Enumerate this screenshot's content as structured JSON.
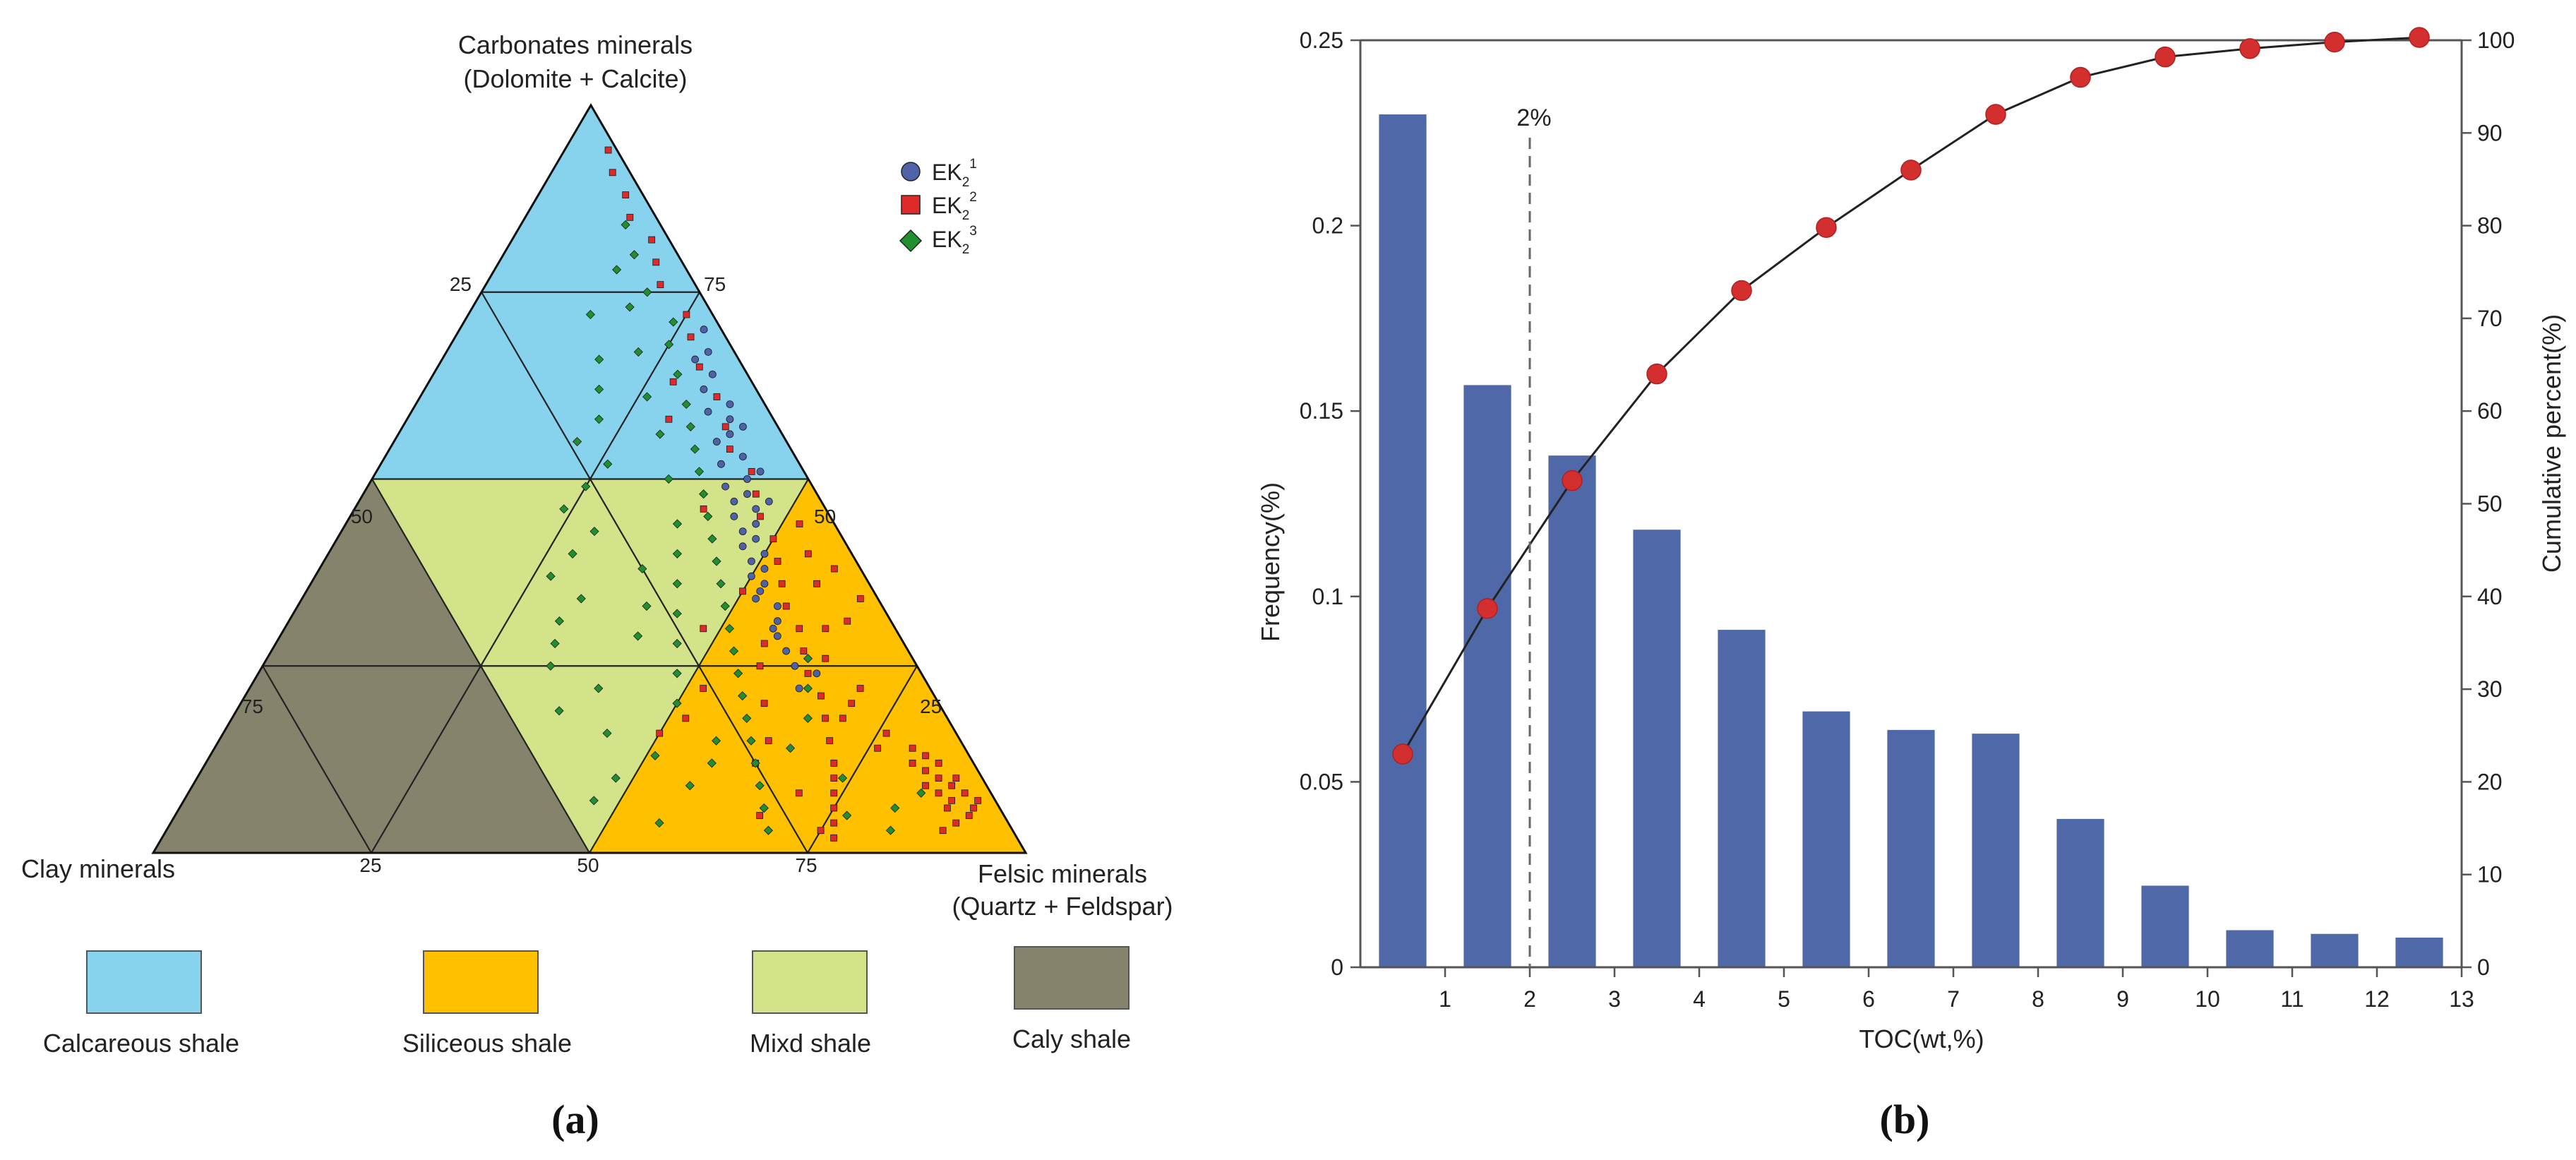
{
  "panel_a": {
    "label": "(a)",
    "top_vertex_line1": "Carbonates minerals",
    "top_vertex_line2": "(Dolomite + Calcite)",
    "left_vertex": "Clay minerals",
    "right_vertex_line1": "Felsic minerals",
    "right_vertex_line2": "(Quartz + Feldspar)",
    "ticks": {
      "left_edge": [
        "25",
        "50",
        "75"
      ],
      "right_edge": [
        "75",
        "50",
        "25"
      ],
      "bottom_edge": [
        "25",
        "50",
        "75"
      ]
    },
    "legend": [
      {
        "name": "EK",
        "sub": "2",
        "sup": "1",
        "marker": "circle",
        "color": "#4f62a8"
      },
      {
        "name": "EK",
        "sub": "2",
        "sup": "2",
        "marker": "square",
        "color": "#e02a2a"
      },
      {
        "name": "EK",
        "sub": "2",
        "sup": "3",
        "marker": "diamond",
        "color": "#1f8f2f"
      }
    ],
    "classes": [
      {
        "name": "Calcareous shale",
        "color": "#87d3ee"
      },
      {
        "name": "Siliceous shale",
        "color": "#ffc000"
      },
      {
        "name": "Mixd shale",
        "color": "#d2e38a"
      },
      {
        "name": "Caly shale",
        "color": "#85836c"
      }
    ]
  },
  "panel_b": {
    "label": "(b)"
  },
  "chart_data": [
    {
      "type": "scatter",
      "subtype": "ternary",
      "axes": [
        "Carbonates minerals",
        "Clay minerals",
        "Felsic minerals"
      ],
      "series": [
        {
          "name": "EK2^1",
          "marker": "circle",
          "color": "#4f62a8",
          "points": [
            [
              70,
              2,
              28
            ],
            [
              67,
              3,
              30
            ],
            [
              64,
              4,
              32
            ],
            [
              60,
              4,
              36
            ],
            [
              58,
              5,
              37
            ],
            [
              56,
              6,
              38
            ],
            [
              53,
              6,
              41
            ],
            [
              50,
              7,
              43
            ],
            [
              48,
              8,
              44
            ],
            [
              46,
              8,
              46
            ],
            [
              44,
              9,
              47
            ],
            [
              42,
              10,
              48
            ],
            [
              40,
              10,
              50
            ],
            [
              38,
              11,
              51
            ],
            [
              36,
              12,
              52
            ],
            [
              33,
              12,
              55
            ],
            [
              31,
              13,
              56
            ],
            [
              29,
              14,
              57
            ],
            [
              27,
              14,
              59
            ],
            [
              62,
              6,
              32
            ],
            [
              55,
              8,
              37
            ],
            [
              49,
              10,
              41
            ],
            [
              45,
              11,
              44
            ],
            [
              41,
              12,
              47
            ],
            [
              37,
              13,
              50
            ],
            [
              34,
              14,
              52
            ],
            [
              66,
              5,
              29
            ],
            [
              59,
              7,
              34
            ],
            [
              52,
              9,
              39
            ],
            [
              47,
              10,
              43
            ],
            [
              43,
              11,
              46
            ],
            [
              39,
              12,
              49
            ],
            [
              35,
              13,
              52
            ],
            [
              30,
              14,
              56
            ],
            [
              25,
              14,
              61
            ],
            [
              22,
              15,
              63
            ],
            [
              24,
              12,
              64
            ],
            [
              57,
              4,
              39
            ],
            [
              51,
              5,
              44
            ],
            [
              47,
              6,
              47
            ]
          ]
        },
        {
          "name": "EK2^2",
          "marker": "square",
          "color": "#e02a2a",
          "points": [
            [
              94,
              1,
              5
            ],
            [
              91,
              2,
              7
            ],
            [
              88,
              2,
              10
            ],
            [
              85,
              3,
              12
            ],
            [
              82,
              2,
              16
            ],
            [
              79,
              3,
              18
            ],
            [
              76,
              4,
              20
            ],
            [
              72,
              3,
              25
            ],
            [
              69,
              4,
              27
            ],
            [
              65,
              5,
              30
            ],
            [
              61,
              5,
              34
            ],
            [
              57,
              6,
              37
            ],
            [
              54,
              7,
              39
            ],
            [
              51,
              6,
              43
            ],
            [
              48,
              7,
              45
            ],
            [
              45,
              8,
              47
            ],
            [
              42,
              8,
              50
            ],
            [
              39,
              9,
              52
            ],
            [
              36,
              10,
              54
            ],
            [
              33,
              11,
              56
            ],
            [
              30,
              11,
              59
            ],
            [
              27,
              12,
              61
            ],
            [
              24,
              13,
              63
            ],
            [
              21,
              13,
              66
            ],
            [
              18,
              14,
              68
            ],
            [
              15,
              15,
              70
            ],
            [
              12,
              16,
              72
            ],
            [
              10,
              17,
              73
            ],
            [
              8,
              18,
              74
            ],
            [
              6,
              19,
              75
            ],
            [
              4,
              20,
              76
            ],
            [
              2,
              21,
              77
            ],
            [
              10,
              5,
              85
            ],
            [
              9,
              4,
              87
            ],
            [
              8,
              3,
              89
            ],
            [
              7,
              2,
              91
            ],
            [
              6,
              3,
              91
            ],
            [
              8,
              6,
              86
            ],
            [
              11,
              6,
              83
            ],
            [
              12,
              4,
              84
            ],
            [
              13,
              5,
              82
            ],
            [
              7,
              5,
              88
            ],
            [
              5,
              4,
              91
            ],
            [
              9,
              7,
              84
            ],
            [
              14,
              6,
              80
            ],
            [
              6,
              6,
              88
            ],
            [
              10,
              3,
              87
            ],
            [
              4,
              6,
              90
            ],
            [
              12,
              7,
              81
            ],
            [
              3,
              8,
              89
            ],
            [
              20,
              20,
              60
            ],
            [
              25,
              18,
              57
            ],
            [
              30,
              22,
              48
            ],
            [
              22,
              26,
              52
            ],
            [
              18,
              30,
              52
            ],
            [
              16,
              34,
              50
            ],
            [
              35,
              15,
              50
            ],
            [
              28,
              16,
              56
            ],
            [
              15,
              22,
              63
            ],
            [
              12,
              25,
              63
            ],
            [
              8,
              22,
              70
            ],
            [
              5,
              28,
              67
            ],
            [
              3,
              22,
              75
            ],
            [
              20,
              10,
              70
            ],
            [
              16,
              8,
              76
            ],
            [
              14,
              10,
              76
            ],
            [
              18,
              12,
              70
            ],
            [
              22,
              8,
              70
            ],
            [
              26,
              10,
              64
            ],
            [
              30,
              8,
              62
            ],
            [
              40,
              5,
              55
            ],
            [
              44,
              4,
              52
            ],
            [
              38,
              3,
              59
            ],
            [
              36,
              6,
              58
            ],
            [
              34,
              2,
              64
            ],
            [
              31,
              5,
              64
            ],
            [
              63,
              9,
              28
            ],
            [
              58,
              12,
              30
            ],
            [
              46,
              14,
              40
            ]
          ]
        },
        {
          "name": "EK2^3",
          "marker": "diamond",
          "color": "#1f8f2f",
          "points": [
            [
              84,
              4,
              12
            ],
            [
              80,
              5,
              15
            ],
            [
              75,
              6,
              19
            ],
            [
              71,
              5,
              24
            ],
            [
              68,
              7,
              25
            ],
            [
              64,
              8,
              28
            ],
            [
              60,
              9,
              31
            ],
            [
              57,
              10,
              33
            ],
            [
              54,
              11,
              35
            ],
            [
              51,
              12,
              37
            ],
            [
              48,
              13,
              39
            ],
            [
              45,
              14,
              41
            ],
            [
              42,
              15,
              43
            ],
            [
              39,
              16,
              45
            ],
            [
              36,
              17,
              47
            ],
            [
              33,
              18,
              49
            ],
            [
              30,
              19,
              51
            ],
            [
              27,
              20,
              53
            ],
            [
              24,
              21,
              55
            ],
            [
              21,
              22,
              57
            ],
            [
              18,
              23,
              59
            ],
            [
              15,
              24,
              61
            ],
            [
              12,
              25,
              63
            ],
            [
              9,
              26,
              65
            ],
            [
              6,
              27,
              67
            ],
            [
              3,
              28,
              69
            ],
            [
              72,
              14,
              14
            ],
            [
              66,
              16,
              18
            ],
            [
              62,
              18,
              20
            ],
            [
              58,
              20,
              22
            ],
            [
              55,
              24,
              21
            ],
            [
              52,
              22,
              26
            ],
            [
              49,
              26,
              25
            ],
            [
              46,
              30,
              24
            ],
            [
              43,
              28,
              29
            ],
            [
              40,
              32,
              28
            ],
            [
              37,
              36,
              27
            ],
            [
              34,
              34,
              32
            ],
            [
              31,
              38,
              31
            ],
            [
              28,
              40,
              32
            ],
            [
              25,
              42,
              33
            ],
            [
              22,
              38,
              40
            ],
            [
              19,
              44,
              37
            ],
            [
              16,
              40,
              44
            ],
            [
              13,
              36,
              51
            ],
            [
              10,
              42,
              48
            ],
            [
              7,
              46,
              47
            ],
            [
              4,
              40,
              56
            ],
            [
              20,
              30,
              50
            ],
            [
              24,
              28,
              48
            ],
            [
              28,
              26,
              46
            ],
            [
              32,
              24,
              44
            ],
            [
              36,
              22,
              42
            ],
            [
              40,
              20,
              40
            ],
            [
              44,
              18,
              38
            ],
            [
              14,
              20,
              66
            ],
            [
              10,
              16,
              74
            ],
            [
              6,
              12,
              82
            ],
            [
              8,
              8,
              84
            ],
            [
              3,
              14,
              83
            ],
            [
              5,
              18,
              77
            ],
            [
              18,
              16,
              66
            ],
            [
              22,
              14,
              64
            ],
            [
              26,
              12,
              62
            ],
            [
              50,
              16,
              34
            ],
            [
              56,
              14,
              30
            ],
            [
              61,
              13,
              26
            ],
            [
              67,
              11,
              22
            ],
            [
              73,
              9,
              18
            ],
            [
              78,
              8,
              14
            ],
            [
              29,
              30,
              41
            ],
            [
              33,
              27,
              40
            ],
            [
              38,
              25,
              37
            ],
            [
              12,
              30,
              58
            ],
            [
              15,
              28,
              57
            ],
            [
              9,
              34,
              57
            ]
          ]
        }
      ]
    },
    {
      "type": "bar",
      "subtype": "histogram-with-cumulative-line",
      "xlabel": "TOC(wt,%)",
      "ylabel": "Frequency(%)",
      "y2label": "Cumulative percent(%)",
      "xlim": [
        0,
        13
      ],
      "ylim": [
        0,
        0.25
      ],
      "y2lim": [
        0,
        100
      ],
      "xticks": [
        "1",
        "2",
        "3",
        "4",
        "5",
        "6",
        "7",
        "8",
        "9",
        "10",
        "11",
        "12",
        "13"
      ],
      "yticks": [
        "0",
        "0.05",
        "0.1",
        "0.15",
        "0.2",
        "0.25"
      ],
      "y2ticks": [
        "0",
        "10",
        "20",
        "30",
        "40",
        "50",
        "60",
        "70",
        "80",
        "90",
        "100"
      ],
      "bars": {
        "x": [
          0.5,
          1.5,
          2.5,
          3.5,
          4.5,
          5.5,
          6.5,
          7.5,
          8.5,
          9.5,
          10.5,
          11.5,
          12.5
        ],
        "values": [
          0.23,
          0.157,
          0.138,
          0.118,
          0.091,
          0.069,
          0.064,
          0.063,
          0.04,
          0.022,
          0.01,
          0.009,
          0.008
        ],
        "color": "#4f69a8"
      },
      "cumulative": {
        "x": [
          0.5,
          1.5,
          2.5,
          3.5,
          4.5,
          5.5,
          6.5,
          7.5,
          8.5,
          9.5,
          10.5,
          11.5,
          12.5
        ],
        "values": [
          23,
          38.7,
          52.5,
          64,
          73,
          79.8,
          86,
          92,
          96,
          98.2,
          99.1,
          99.8,
          100.3
        ],
        "color": "#d32f2f"
      },
      "reference_line": {
        "x": 2,
        "label": "2%"
      }
    }
  ]
}
